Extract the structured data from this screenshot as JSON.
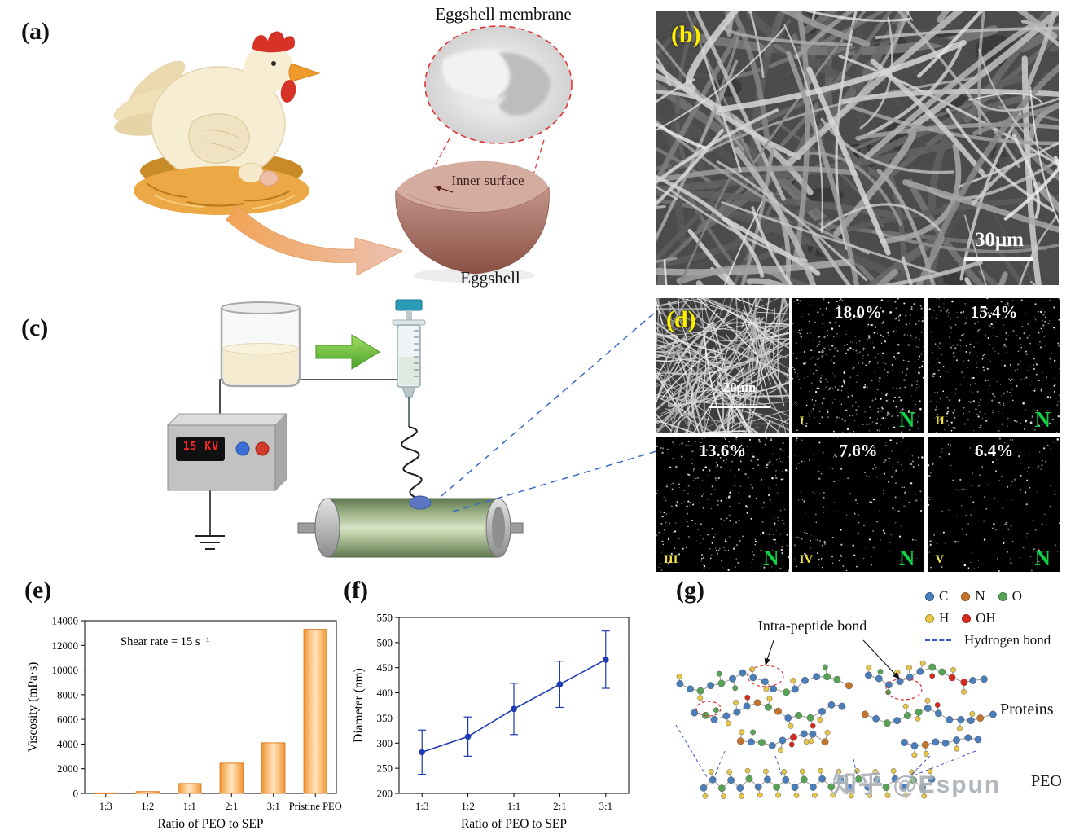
{
  "figure": {
    "background": "#ffffff"
  },
  "panels": {
    "a": {
      "label": "(a)",
      "membrane_label": "Eggshell membrane",
      "inner_surface_label": "Inner surface",
      "eggshell_label": "Eggshell"
    },
    "b": {
      "label": "(b)",
      "scale_bar": "30μm"
    },
    "c": {
      "label": "(c)",
      "voltage": "15 KV"
    },
    "d": {
      "label": "(d)",
      "scale_bar": "20μm",
      "numeral_color": "#f2e23a",
      "element_color": "#0ed145",
      "maps": [
        {
          "percent": "18.0%",
          "numeral": "I",
          "element": "N"
        },
        {
          "percent": "15.4%",
          "numeral": "II",
          "element": "N"
        },
        {
          "percent": "13.6%",
          "numeral": "III",
          "element": "N"
        },
        {
          "percent": "7.6%",
          "numeral": "IV",
          "element": "N"
        },
        {
          "percent": "6.4%",
          "numeral": "V",
          "element": "N"
        }
      ]
    },
    "e": {
      "label": "(e)"
    },
    "f": {
      "label": "(f)"
    },
    "g": {
      "label": "(g)",
      "intra_peptide_label": "Intra-peptide bond",
      "hydrogen_bond_label": "Hydrogen bond",
      "hydrogen_bond_color": "#3a55c8",
      "proteins_label": "Proteins",
      "peo_label": "PEO",
      "watermark": "知乎 @Espun",
      "legend": [
        {
          "symbol": "C",
          "color": "#4a7ebb"
        },
        {
          "symbol": "N",
          "color": "#c4732b"
        },
        {
          "symbol": "O",
          "color": "#57a356"
        },
        {
          "symbol": "H",
          "color": "#e5c648"
        },
        {
          "symbol": "OH",
          "color": "#d62a1f"
        }
      ]
    }
  },
  "chart_data": [
    {
      "id": "viscosity",
      "type": "bar",
      "annotation": "Shear rate = 15 s⁻¹",
      "categories": [
        "1:3",
        "1:2",
        "1:1",
        "2:1",
        "3:1",
        "Pristine PEO"
      ],
      "values": [
        40,
        150,
        800,
        2450,
        4100,
        13300
      ],
      "xlabel": "Ratio of PEO to SEP",
      "ylabel": "Viscosity (mPa·s)",
      "ylim": [
        0,
        14000
      ],
      "ytick_step": 2000,
      "bar_edge": "#e07c20",
      "grid": false,
      "legend_position": "none"
    },
    {
      "id": "diameter",
      "type": "line",
      "categories": [
        "1:3",
        "1:2",
        "1:1",
        "2:1",
        "3:1"
      ],
      "values": [
        282,
        313,
        368,
        417,
        466
      ],
      "errors": [
        44,
        39,
        51,
        46,
        57
      ],
      "xlabel": "Ratio of PEO to SEP",
      "ylabel": "Diameter (nm)",
      "ylim": [
        200,
        550
      ],
      "ytick_step": 50,
      "line_color": "#1f3bb3",
      "grid": false,
      "legend_position": "none"
    }
  ]
}
